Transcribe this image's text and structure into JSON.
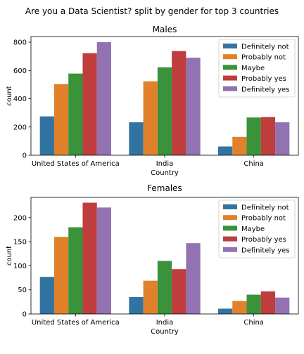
{
  "suptitle": "Are you a Data Scientist? split by gender for top 3 countries",
  "legend_labels": [
    "Definitely not",
    "Probably not",
    "Maybe",
    "Probably yes",
    "Definitely yes"
  ],
  "colors": {
    "Definitely not": "#3274a1",
    "Probably not": "#e1812c",
    "Maybe": "#3a923a",
    "Probably yes": "#c03d3e",
    "Definitely yes": "#9372b2"
  },
  "chart_data": [
    {
      "type": "bar",
      "title": "Males",
      "xlabel": "Country",
      "ylabel": "count",
      "categories": [
        "United States of America",
        "India",
        "China"
      ],
      "ylim": [
        0,
        840
      ],
      "yticks": [
        0,
        200,
        400,
        600,
        800
      ],
      "legend_position": "top-right",
      "grid": false,
      "series": [
        {
          "name": "Definitely not",
          "values": [
            275,
            233,
            62
          ]
        },
        {
          "name": "Probably not",
          "values": [
            503,
            523,
            130
          ]
        },
        {
          "name": "Maybe",
          "values": [
            578,
            622,
            267
          ]
        },
        {
          "name": "Probably yes",
          "values": [
            722,
            737,
            270
          ]
        },
        {
          "name": "Definitely yes",
          "values": [
            800,
            690,
            233
          ]
        }
      ]
    },
    {
      "type": "bar",
      "title": "Females",
      "xlabel": "Country",
      "ylabel": "count",
      "categories": [
        "United States of America",
        "India",
        "China"
      ],
      "ylim": [
        0,
        242
      ],
      "yticks": [
        0,
        50,
        100,
        150,
        200
      ],
      "legend_position": "top-right",
      "grid": false,
      "series": [
        {
          "name": "Definitely not",
          "values": [
            77,
            35,
            11
          ]
        },
        {
          "name": "Probably not",
          "values": [
            160,
            69,
            27
          ]
        },
        {
          "name": "Maybe",
          "values": [
            180,
            110,
            40
          ]
        },
        {
          "name": "Probably yes",
          "values": [
            231,
            93,
            47
          ]
        },
        {
          "name": "Definitely yes",
          "values": [
            221,
            147,
            34
          ]
        }
      ]
    }
  ]
}
